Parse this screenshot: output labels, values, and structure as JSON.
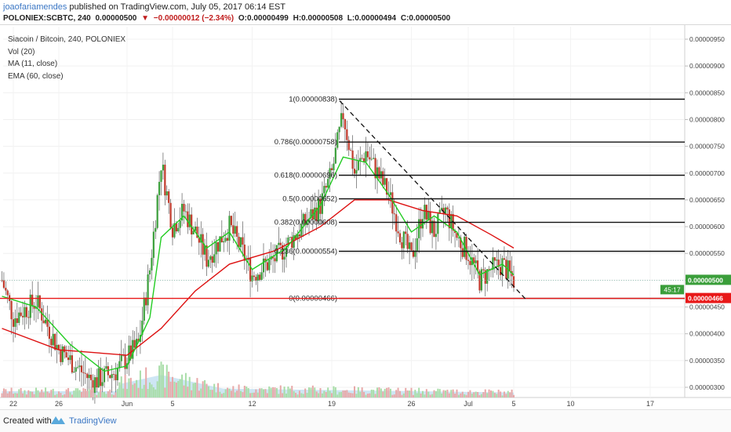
{
  "header": {
    "author": "joaofariamendes",
    "published": "published on TradingView.com, July 05, 2017 06:14 EST",
    "symbol": "POLONIEX:SCBTC, 240",
    "last": "0.00000500",
    "change_arrow": "▼",
    "change": "−0.00000012 (−2.34%)",
    "open": "O:0.00000499",
    "high": "H:0.00000508",
    "low": "L:0.00000494",
    "close": "C:0.00000500"
  },
  "legend": {
    "title": "Siacoin / Bitcoin, 240, POLONIEX",
    "vol": "Vol (20)",
    "ma": "MA (11, close)",
    "ema": "EMA (60, close)"
  },
  "footer": {
    "created": "Created with",
    "brand": "TradingView"
  },
  "colors": {
    "up": "#3a9e3a",
    "down": "#c0392b",
    "ma": "#22cc22",
    "ema": "#dd1111",
    "support": "#e81818",
    "fib": "#111111",
    "vol_up": "#a8dda8",
    "vol_down": "#e8a8a8",
    "vol_area": "#b9dcf0"
  },
  "chart_data": {
    "type": "candlestick",
    "instrument": "POLONIEX:SCBTC",
    "timeframe": "240",
    "x_ticks": [
      "22",
      "26",
      "Jun",
      "5",
      "12",
      "19",
      "26",
      "Jul",
      "5",
      "10",
      "17"
    ],
    "y_ticks": [
      "0.00000950",
      "0.00000900",
      "0.00000850",
      "0.00000800",
      "0.00000750",
      "0.00000700",
      "0.00000650",
      "0.00000600",
      "0.00000550",
      "0.00000500",
      "0.00000450",
      "0.00000400",
      "0.00000350",
      "0.00000300"
    ],
    "y_range": [
      2.9e-06,
      9.7e-06
    ],
    "price_badges": [
      {
        "value": "0.00000500",
        "label": "0.00000500",
        "countdown": "45:17",
        "color": "#3a9e3a"
      },
      {
        "value": "0.00000466",
        "label": "0.00000466",
        "color": "#e81818"
      }
    ],
    "support_line": 4.66e-06,
    "fib_levels": [
      {
        "label": "1(0.00000838)",
        "value": 8.38e-06
      },
      {
        "label": "0.786(0.00000758)",
        "value": 7.58e-06
      },
      {
        "label": "0.618(0.00000696)",
        "value": 6.96e-06
      },
      {
        "label": "0.5(0.00000652)",
        "value": 6.52e-06
      },
      {
        "label": "0.382(0.00000608)",
        "value": 6.08e-06
      },
      {
        "label": "0.236(0.00000554)",
        "value": 5.54e-06
      },
      {
        "label": "0(0.00000466)",
        "value": 4.66e-06
      }
    ],
    "fib_start_date": "Jun 19",
    "trendline": [
      {
        "date": "Jun 19",
        "value": 8.35e-06
      },
      {
        "date": "Jul 5",
        "value": 4.65e-06
      }
    ],
    "close_path": [
      {
        "date": "May 21",
        "value": 5e-06
      },
      {
        "date": "May 22",
        "value": 4.3e-06
      },
      {
        "date": "May 24",
        "value": 4.6e-06
      },
      {
        "date": "May 26",
        "value": 3.7e-06
      },
      {
        "date": "May 29",
        "value": 3.1e-06
      },
      {
        "date": "May 31",
        "value": 3.3e-06
      },
      {
        "date": "Jun 2",
        "value": 3.8e-06
      },
      {
        "date": "Jun 3",
        "value": 5.2e-06
      },
      {
        "date": "Jun 4",
        "value": 7.2e-06
      },
      {
        "date": "Jun 5",
        "value": 6e-06
      },
      {
        "date": "Jun 6",
        "value": 6.3e-06
      },
      {
        "date": "Jun 7",
        "value": 5.9e-06
      },
      {
        "date": "Jun 8",
        "value": 5.4e-06
      },
      {
        "date": "Jun 10",
        "value": 6e-06
      },
      {
        "date": "Jun 11",
        "value": 5.6e-06
      },
      {
        "date": "Jun 12",
        "value": 5.1e-06
      },
      {
        "date": "Jun 14",
        "value": 5.4e-06
      },
      {
        "date": "Jun 16",
        "value": 5.9e-06
      },
      {
        "date": "Jun 18",
        "value": 6.4e-06
      },
      {
        "date": "Jun 19",
        "value": 7e-06
      },
      {
        "date": "Jun 20",
        "value": 8.1e-06
      },
      {
        "date": "Jun 21",
        "value": 7e-06
      },
      {
        "date": "Jun 22",
        "value": 7.4e-06
      },
      {
        "date": "Jun 23",
        "value": 7e-06
      },
      {
        "date": "Jun 24",
        "value": 6.6e-06
      },
      {
        "date": "Jun 25",
        "value": 5.9e-06
      },
      {
        "date": "Jun 26",
        "value": 5.4e-06
      },
      {
        "date": "Jun 27",
        "value": 6.3e-06
      },
      {
        "date": "Jun 28",
        "value": 5.9e-06
      },
      {
        "date": "Jun 29",
        "value": 6.3e-06
      },
      {
        "date": "Jun 30",
        "value": 5.8e-06
      },
      {
        "date": "Jul 1",
        "value": 5.5e-06
      },
      {
        "date": "Jul 2",
        "value": 5e-06
      },
      {
        "date": "Jul 3",
        "value": 5.2e-06
      },
      {
        "date": "Jul 4",
        "value": 5.3e-06
      },
      {
        "date": "Jul 5",
        "value": 5e-06
      }
    ],
    "ma_11": [
      {
        "date": "May 21",
        "value": 4.7e-06
      },
      {
        "date": "May 24",
        "value": 4.5e-06
      },
      {
        "date": "May 27",
        "value": 3.8e-06
      },
      {
        "date": "May 30",
        "value": 3.3e-06
      },
      {
        "date": "Jun 1",
        "value": 3.4e-06
      },
      {
        "date": "Jun 3",
        "value": 4.3e-06
      },
      {
        "date": "Jun 4",
        "value": 5.8e-06
      },
      {
        "date": "Jun 6",
        "value": 6.2e-06
      },
      {
        "date": "Jun 8",
        "value": 5.6e-06
      },
      {
        "date": "Jun 10",
        "value": 5.9e-06
      },
      {
        "date": "Jun 12",
        "value": 5.2e-06
      },
      {
        "date": "Jun 15",
        "value": 5.6e-06
      },
      {
        "date": "Jun 18",
        "value": 6.4e-06
      },
      {
        "date": "Jun 20",
        "value": 7.3e-06
      },
      {
        "date": "Jun 22",
        "value": 7.2e-06
      },
      {
        "date": "Jun 24",
        "value": 6.6e-06
      },
      {
        "date": "Jun 26",
        "value": 5.9e-06
      },
      {
        "date": "Jun 28",
        "value": 6.2e-06
      },
      {
        "date": "Jun 30",
        "value": 5.9e-06
      },
      {
        "date": "Jul 2",
        "value": 5.1e-06
      },
      {
        "date": "Jul 4",
        "value": 5.3e-06
      },
      {
        "date": "Jul 5",
        "value": 5.1e-06
      }
    ],
    "ema_60": [
      {
        "date": "May 21",
        "value": 4.1e-06
      },
      {
        "date": "May 26",
        "value": 3.7e-06
      },
      {
        "date": "Jun 1",
        "value": 3.6e-06
      },
      {
        "date": "Jun 4",
        "value": 4.1e-06
      },
      {
        "date": "Jun 7",
        "value": 4.8e-06
      },
      {
        "date": "Jun 10",
        "value": 5.3e-06
      },
      {
        "date": "Jun 14",
        "value": 5.55e-06
      },
      {
        "date": "Jun 18",
        "value": 6e-06
      },
      {
        "date": "Jun 21",
        "value": 6.5e-06
      },
      {
        "date": "Jun 24",
        "value": 6.5e-06
      },
      {
        "date": "Jun 27",
        "value": 6.3e-06
      },
      {
        "date": "Jun 30",
        "value": 6.2e-06
      },
      {
        "date": "Jul 3",
        "value": 5.85e-06
      },
      {
        "date": "Jul 5",
        "value": 5.6e-06
      }
    ]
  }
}
